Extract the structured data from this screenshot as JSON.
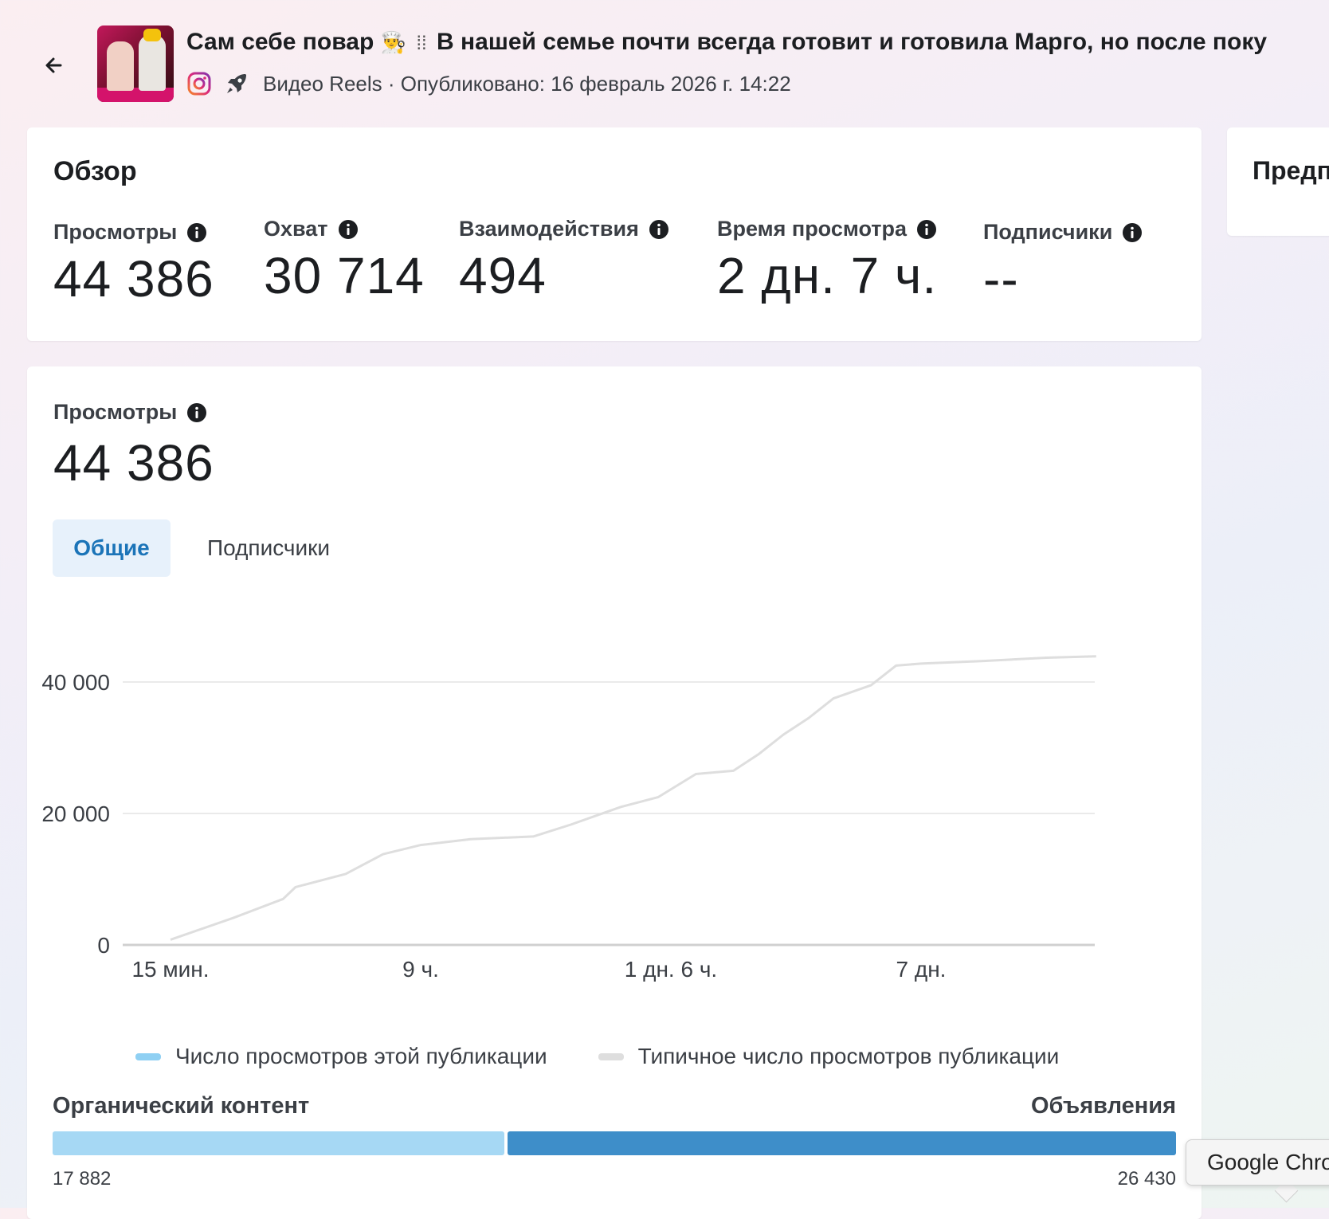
{
  "header": {
    "title_part1": "Сам себе повар",
    "title_emoji": "👨‍🍳",
    "title_separator": "⁞⁞",
    "title_part2": "В нашей семье почти всегда готовит и готовила Марго, но после поку",
    "subtitle": "Видео Reels · Опубликовано: 16 февраль 2026 г. 14:22",
    "icons": [
      "back-arrow-icon",
      "instagram-icon",
      "boost-rocket-icon"
    ]
  },
  "overview": {
    "title": "Обзор",
    "metrics": [
      {
        "label": "Просмотры",
        "value": "44 386"
      },
      {
        "label": "Охват",
        "value": "30 714"
      },
      {
        "label": "Взаимодействия",
        "value": "494"
      },
      {
        "label": "Время просмотра",
        "value": "2 дн. 7 ч."
      },
      {
        "label": "Подписчики",
        "value": "--"
      }
    ]
  },
  "preview": {
    "title": "Предп"
  },
  "views_card": {
    "label": "Просмотры",
    "value": "44 386",
    "tabs": [
      {
        "label": "Общие",
        "active": true
      },
      {
        "label": "Подписчики",
        "active": false
      }
    ]
  },
  "chart_data": {
    "type": "line",
    "title": "",
    "xlabel": "",
    "ylabel": "",
    "y_ticks": [
      "40 000",
      "20 000",
      "0"
    ],
    "y_tick_values": [
      40000,
      20000,
      0
    ],
    "ylim": [
      0,
      48000
    ],
    "x_ticks": [
      "15 мин.",
      "9 ч.",
      "1 дн. 6 ч.",
      "7 дн."
    ],
    "x_tick_positions": [
      0,
      1,
      2,
      3
    ],
    "grid": true,
    "legend_placement": "bottom",
    "series": [
      {
        "name": "Число просмотров этой публикации",
        "color": "#8fd0f3",
        "points": []
      },
      {
        "name": "Типичное число просмотров публикации",
        "color": "#dedede",
        "points": [
          {
            "x": 0.0,
            "y": 800
          },
          {
            "x": 0.25,
            "y": 4100
          },
          {
            "x": 0.45,
            "y": 7000
          },
          {
            "x": 0.5,
            "y": 8800
          },
          {
            "x": 0.7,
            "y": 10800
          },
          {
            "x": 0.85,
            "y": 13800
          },
          {
            "x": 1.0,
            "y": 15200
          },
          {
            "x": 1.2,
            "y": 16100
          },
          {
            "x": 1.45,
            "y": 16500
          },
          {
            "x": 1.6,
            "y": 18300
          },
          {
            "x": 1.8,
            "y": 21000
          },
          {
            "x": 1.95,
            "y": 22500
          },
          {
            "x": 2.1,
            "y": 26000
          },
          {
            "x": 2.25,
            "y": 26500
          },
          {
            "x": 2.35,
            "y": 29000
          },
          {
            "x": 2.45,
            "y": 32000
          },
          {
            "x": 2.55,
            "y": 34500
          },
          {
            "x": 2.65,
            "y": 37500
          },
          {
            "x": 2.8,
            "y": 39500
          },
          {
            "x": 2.9,
            "y": 42500
          },
          {
            "x": 3.0,
            "y": 42800
          },
          {
            "x": 3.25,
            "y": 43200
          },
          {
            "x": 3.5,
            "y": 43700
          },
          {
            "x": 3.7,
            "y": 43900
          }
        ]
      }
    ]
  },
  "split": {
    "left_label": "Органический контент",
    "right_label": "Объявления",
    "left_value": "17 882",
    "right_value": "26 430",
    "left_number": 17882,
    "right_number": 26430,
    "left_color": "#a6d8f4",
    "right_color": "#3e8ec9"
  },
  "tooltip": {
    "text": "Google Chro"
  },
  "colors": {
    "accent": "#1b74b8",
    "tab_active_bg": "#e7f1fb"
  }
}
